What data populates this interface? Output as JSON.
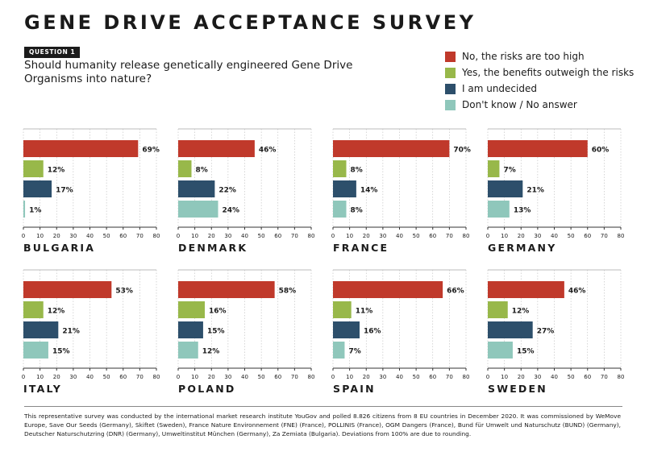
{
  "title": "GENE DRIVE ACCEPTANCE SURVEY",
  "question_badge": "QUESTION 1",
  "question_text": "Should humanity release genetically engineered Gene Drive Organisms into nature?",
  "colors": {
    "no": "#c0392b",
    "yes": "#98b84a",
    "undecided": "#2d4f6b",
    "dontknow": "#8fc7bb",
    "axis": "#333333",
    "grid": "#bbbbbb"
  },
  "legend": [
    {
      "label": "No, the risks are too high",
      "color": "#c0392b"
    },
    {
      "label": "Yes, the benefits outweigh the risks",
      "color": "#98b84a"
    },
    {
      "label": "I am undecided",
      "color": "#2d4f6b"
    },
    {
      "label": "Don't know / No answer",
      "color": "#8fc7bb"
    }
  ],
  "chart_data": [
    {
      "type": "bar",
      "title": "BULGARIA",
      "values": [
        69,
        12,
        17,
        1
      ],
      "value_labels": [
        "69%",
        "12%",
        "17%",
        "1%"
      ],
      "xlim": [
        0,
        80
      ],
      "xticks": [
        0,
        10,
        20,
        30,
        40,
        50,
        60,
        70,
        80
      ]
    },
    {
      "type": "bar",
      "title": "DENMARK",
      "values": [
        46,
        8,
        22,
        24
      ],
      "value_labels": [
        "46%",
        "8%",
        "22%",
        "24%"
      ],
      "xlim": [
        0,
        80
      ],
      "xticks": [
        0,
        10,
        20,
        30,
        40,
        50,
        60,
        70,
        80
      ]
    },
    {
      "type": "bar",
      "title": "FRANCE",
      "values": [
        70,
        8,
        14,
        8
      ],
      "value_labels": [
        "70%",
        "8%",
        "14%",
        "8%"
      ],
      "xlim": [
        0,
        80
      ],
      "xticks": [
        0,
        10,
        20,
        30,
        40,
        50,
        60,
        70,
        80
      ]
    },
    {
      "type": "bar",
      "title": "GERMANY",
      "values": [
        60,
        7,
        21,
        13
      ],
      "value_labels": [
        "60%",
        "7%",
        "21%",
        "13%"
      ],
      "xlim": [
        0,
        80
      ],
      "xticks": [
        0,
        10,
        20,
        30,
        40,
        50,
        60,
        70,
        80
      ]
    },
    {
      "type": "bar",
      "title": "ITALY",
      "values": [
        53,
        12,
        21,
        15
      ],
      "value_labels": [
        "53%",
        "12%",
        "21%",
        "15%"
      ],
      "xlim": [
        0,
        80
      ],
      "xticks": [
        0,
        10,
        20,
        30,
        40,
        50,
        60,
        70,
        80
      ]
    },
    {
      "type": "bar",
      "title": "POLAND",
      "values": [
        58,
        16,
        15,
        12
      ],
      "value_labels": [
        "58%",
        "16%",
        "15%",
        "12%"
      ],
      "xlim": [
        0,
        80
      ],
      "xticks": [
        0,
        10,
        20,
        30,
        40,
        50,
        60,
        70,
        80
      ]
    },
    {
      "type": "bar",
      "title": "SPAIN",
      "values": [
        66,
        11,
        16,
        7
      ],
      "value_labels": [
        "66%",
        "11%",
        "16%",
        "7%"
      ],
      "xlim": [
        0,
        80
      ],
      "xticks": [
        0,
        10,
        20,
        30,
        40,
        50,
        60,
        70,
        80
      ]
    },
    {
      "type": "bar",
      "title": "SWEDEN",
      "values": [
        46,
        12,
        27,
        15
      ],
      "value_labels": [
        "46%",
        "12%",
        "27%",
        "15%"
      ],
      "xlim": [
        0,
        80
      ],
      "xticks": [
        0,
        10,
        20,
        30,
        40,
        50,
        60,
        70,
        80
      ]
    }
  ],
  "footer": "This representative survey was conducted by the international market research institute YouGov and polled 8.826 citizens from 8 EU countries in December 2020. It was commissioned by WeMove Europe, Save Our Seeds (Germany), Skiftet (Sweden), France Nature Environnement (FNE) (France), POLLINIS (France), OGM Dangers (France), Bund für Umwelt und Naturschutz (BUND) (Germany), Deutscher Naturschutzring (DNR) (Germany), Umweltinstitut München (Germany), Za Zemiata (Bulgaria). Deviations from 100% are due to rounding."
}
